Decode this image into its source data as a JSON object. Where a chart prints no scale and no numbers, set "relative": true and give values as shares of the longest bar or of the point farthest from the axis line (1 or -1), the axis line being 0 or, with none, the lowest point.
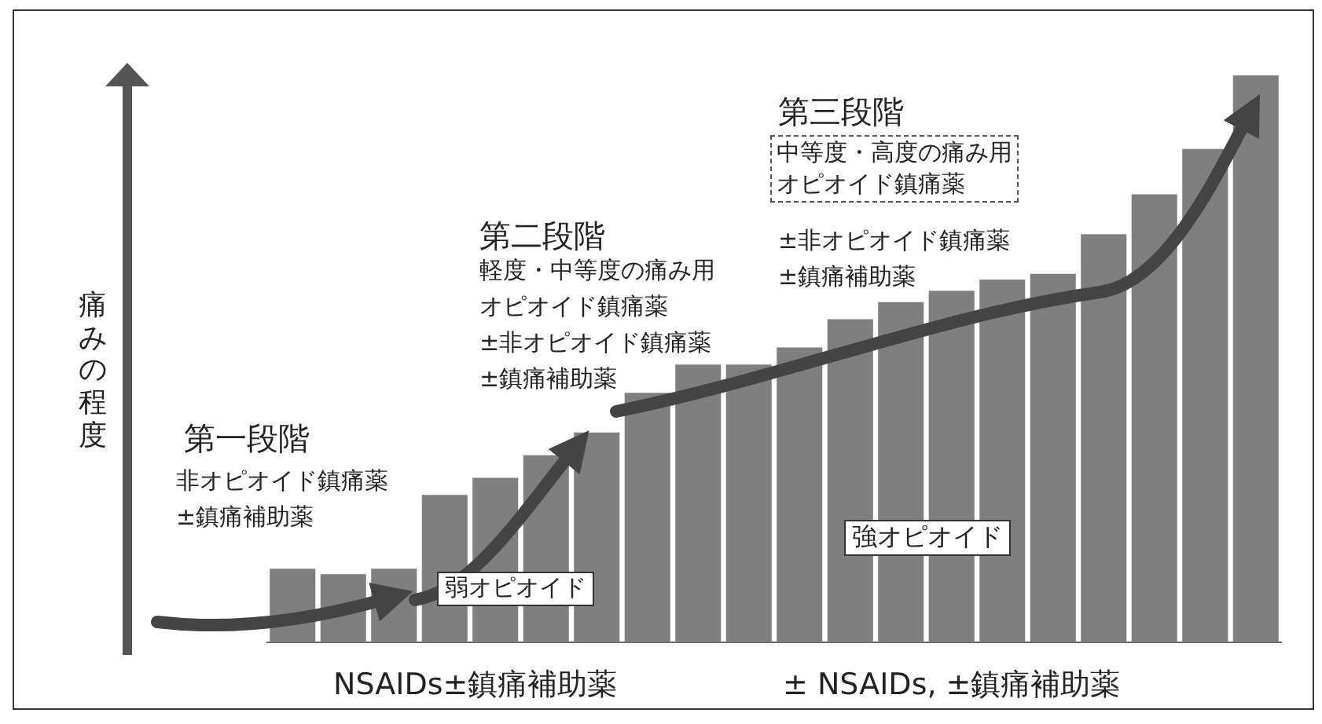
{
  "chart_data": {
    "type": "bar",
    "relative": true,
    "categories": [
      null,
      null,
      null,
      null,
      null,
      null,
      null,
      null,
      null,
      null,
      null,
      null,
      null,
      null,
      null,
      null,
      null,
      null,
      null,
      null
    ],
    "values": [
      0.13,
      0.12,
      0.13,
      0.26,
      0.29,
      0.33,
      0.37,
      0.44,
      0.49,
      0.49,
      0.52,
      0.57,
      0.6,
      0.62,
      0.64,
      0.65,
      0.72,
      0.79,
      0.87,
      1
    ],
    "color": "#7f7f7f",
    "legend": false,
    "annotations": [
      "第一段階",
      "非オピオイド鎮痛薬",
      "±鎮痛補助薬",
      "第二段階",
      "軽度・中等度の痛み用",
      "オピオイド鎮痛薬",
      "±非オピオイド鎮痛薬",
      "±鎮痛補助薬",
      "第三段階",
      "中等度・高度の痛み用オピオイド鎮痛薬",
      "±非オピオイド鎮痛薬",
      "±鎮痛補助薬",
      "弱オピオイド",
      "強オピオイド",
      "NSAIDs±鎮痛補助薬",
      "± NSAIDs, ±鎮痛補助薬",
      "痛みの程度"
    ]
  }
}
